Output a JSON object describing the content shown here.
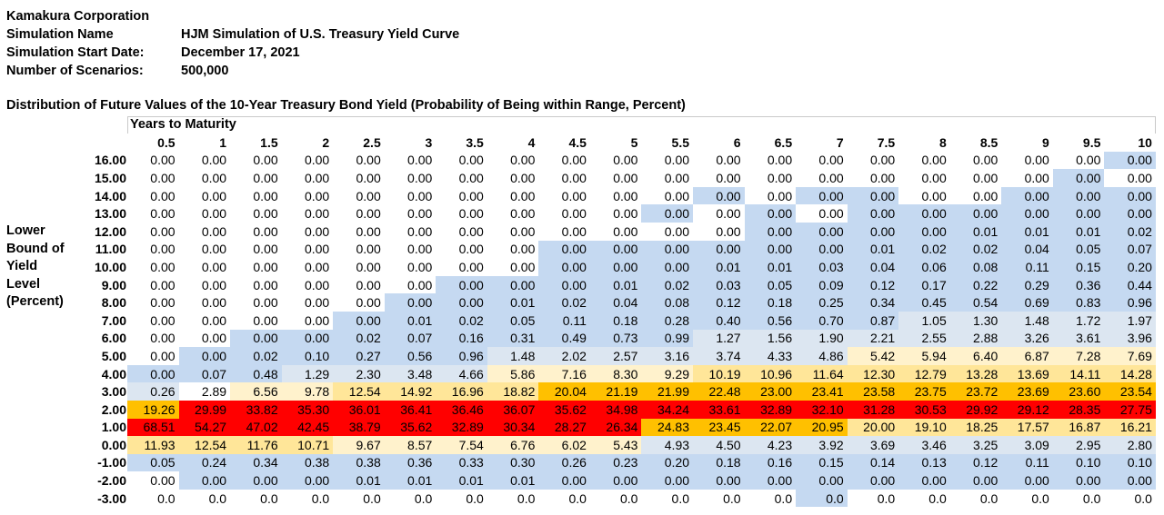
{
  "meta": {
    "company": "Kamakura Corporation",
    "simulation_name_label": "Simulation Name",
    "simulation_name": "HJM Simulation of U.S. Treasury Yield Curve",
    "start_date_label": "Simulation Start Date:",
    "start_date": "December 17, 2021",
    "scenarios_label": "Number of Scenarios:",
    "scenarios": "500,000"
  },
  "section_title": "Distribution of Future Values of the 10-Year Treasury Bond Yield (Probability of Being within Range, Percent)",
  "side_label": [
    "Lower",
    "Bound of",
    "Yield",
    "Level",
    "(Percent)"
  ],
  "years_to_maturity_label": "Years to Maturity",
  "colors": {
    "blue": "#c5d9f1",
    "light_blue": "#dce6f1",
    "white": "#ffffff",
    "light_yellow": "#fff2cc",
    "yellow": "#ffe699",
    "orange": "#ffc000",
    "red": "#ff0000"
  },
  "table": {
    "columns": [
      "0.5",
      "1",
      "1.5",
      "2",
      "2.5",
      "3",
      "3.5",
      "4",
      "4.5",
      "5",
      "5.5",
      "6",
      "6.5",
      "7",
      "7.5",
      "8",
      "8.5",
      "9",
      "9.5",
      "10"
    ],
    "rows": [
      {
        "label": "16.00",
        "values": [
          "0.00",
          "0.00",
          "0.00",
          "0.00",
          "0.00",
          "0.00",
          "0.00",
          "0.00",
          "0.00",
          "0.00",
          "0.00",
          "0.00",
          "0.00",
          "0.00",
          "0.00",
          "0.00",
          "0.00",
          "0.00",
          "0.00",
          "0.00"
        ],
        "shade": [
          "w",
          "w",
          "w",
          "w",
          "w",
          "w",
          "w",
          "w",
          "w",
          "w",
          "w",
          "w",
          "w",
          "w",
          "w",
          "w",
          "w",
          "w",
          "w",
          "b"
        ]
      },
      {
        "label": "15.00",
        "values": [
          "0.00",
          "0.00",
          "0.00",
          "0.00",
          "0.00",
          "0.00",
          "0.00",
          "0.00",
          "0.00",
          "0.00",
          "0.00",
          "0.00",
          "0.00",
          "0.00",
          "0.00",
          "0.00",
          "0.00",
          "0.00",
          "0.00",
          "0.00"
        ],
        "shade": [
          "w",
          "w",
          "w",
          "w",
          "w",
          "w",
          "w",
          "w",
          "w",
          "w",
          "w",
          "w",
          "w",
          "w",
          "w",
          "w",
          "w",
          "w",
          "b",
          "w"
        ]
      },
      {
        "label": "14.00",
        "values": [
          "0.00",
          "0.00",
          "0.00",
          "0.00",
          "0.00",
          "0.00",
          "0.00",
          "0.00",
          "0.00",
          "0.00",
          "0.00",
          "0.00",
          "0.00",
          "0.00",
          "0.00",
          "0.00",
          "0.00",
          "0.00",
          "0.00",
          "0.00"
        ],
        "shade": [
          "w",
          "w",
          "w",
          "w",
          "w",
          "w",
          "w",
          "w",
          "w",
          "w",
          "w",
          "b",
          "w",
          "b",
          "b",
          "w",
          "w",
          "b",
          "b",
          "b"
        ]
      },
      {
        "label": "13.00",
        "values": [
          "0.00",
          "0.00",
          "0.00",
          "0.00",
          "0.00",
          "0.00",
          "0.00",
          "0.00",
          "0.00",
          "0.00",
          "0.00",
          "0.00",
          "0.00",
          "0.00",
          "0.00",
          "0.00",
          "0.00",
          "0.00",
          "0.00",
          "0.00"
        ],
        "shade": [
          "w",
          "w",
          "w",
          "w",
          "w",
          "w",
          "w",
          "w",
          "w",
          "w",
          "b",
          "w",
          "b",
          "w",
          "b",
          "b",
          "b",
          "b",
          "b",
          "b"
        ]
      },
      {
        "label": "12.00",
        "values": [
          "0.00",
          "0.00",
          "0.00",
          "0.00",
          "0.00",
          "0.00",
          "0.00",
          "0.00",
          "0.00",
          "0.00",
          "0.00",
          "0.00",
          "0.00",
          "0.00",
          "0.00",
          "0.00",
          "0.01",
          "0.01",
          "0.01",
          "0.02"
        ],
        "shade": [
          "w",
          "w",
          "w",
          "w",
          "w",
          "w",
          "w",
          "w",
          "w",
          "w",
          "w",
          "w",
          "b",
          "b",
          "b",
          "b",
          "b",
          "b",
          "b",
          "b"
        ]
      },
      {
        "label": "11.00",
        "values": [
          "0.00",
          "0.00",
          "0.00",
          "0.00",
          "0.00",
          "0.00",
          "0.00",
          "0.00",
          "0.00",
          "0.00",
          "0.00",
          "0.00",
          "0.00",
          "0.00",
          "0.01",
          "0.02",
          "0.02",
          "0.04",
          "0.05",
          "0.07"
        ],
        "shade": [
          "w",
          "w",
          "w",
          "w",
          "w",
          "w",
          "w",
          "w",
          "b",
          "b",
          "b",
          "b",
          "b",
          "b",
          "b",
          "b",
          "b",
          "b",
          "b",
          "b"
        ]
      },
      {
        "label": "10.00",
        "values": [
          "0.00",
          "0.00",
          "0.00",
          "0.00",
          "0.00",
          "0.00",
          "0.00",
          "0.00",
          "0.00",
          "0.00",
          "0.00",
          "0.01",
          "0.01",
          "0.03",
          "0.04",
          "0.06",
          "0.08",
          "0.11",
          "0.15",
          "0.20"
        ],
        "shade": [
          "w",
          "w",
          "w",
          "w",
          "w",
          "w",
          "w",
          "w",
          "b",
          "b",
          "b",
          "b",
          "b",
          "b",
          "b",
          "b",
          "b",
          "b",
          "b",
          "b"
        ]
      },
      {
        "label": "9.00",
        "values": [
          "0.00",
          "0.00",
          "0.00",
          "0.00",
          "0.00",
          "0.00",
          "0.00",
          "0.00",
          "0.00",
          "0.01",
          "0.02",
          "0.03",
          "0.05",
          "0.09",
          "0.12",
          "0.17",
          "0.22",
          "0.29",
          "0.36",
          "0.44"
        ],
        "shade": [
          "w",
          "w",
          "w",
          "w",
          "w",
          "w",
          "b",
          "b",
          "b",
          "b",
          "b",
          "b",
          "b",
          "b",
          "b",
          "b",
          "b",
          "b",
          "b",
          "b"
        ]
      },
      {
        "label": "8.00",
        "values": [
          "0.00",
          "0.00",
          "0.00",
          "0.00",
          "0.00",
          "0.00",
          "0.00",
          "0.01",
          "0.02",
          "0.04",
          "0.08",
          "0.12",
          "0.18",
          "0.25",
          "0.34",
          "0.45",
          "0.54",
          "0.69",
          "0.83",
          "0.96"
        ],
        "shade": [
          "w",
          "w",
          "w",
          "w",
          "w",
          "b",
          "b",
          "b",
          "b",
          "b",
          "b",
          "b",
          "b",
          "b",
          "b",
          "b",
          "b",
          "b",
          "b",
          "b"
        ]
      },
      {
        "label": "7.00",
        "values": [
          "0.00",
          "0.00",
          "0.00",
          "0.00",
          "0.00",
          "0.01",
          "0.02",
          "0.05",
          "0.11",
          "0.18",
          "0.28",
          "0.40",
          "0.56",
          "0.70",
          "0.87",
          "1.05",
          "1.30",
          "1.48",
          "1.72",
          "1.97"
        ],
        "shade": [
          "w",
          "w",
          "w",
          "w",
          "b",
          "b",
          "b",
          "b",
          "b",
          "b",
          "b",
          "b",
          "b",
          "b",
          "b",
          "l",
          "l",
          "l",
          "l",
          "l"
        ]
      },
      {
        "label": "6.00",
        "values": [
          "0.00",
          "0.00",
          "0.00",
          "0.00",
          "0.02",
          "0.07",
          "0.16",
          "0.31",
          "0.49",
          "0.73",
          "0.99",
          "1.27",
          "1.56",
          "1.90",
          "2.21",
          "2.55",
          "2.88",
          "3.26",
          "3.61",
          "3.96"
        ],
        "shade": [
          "w",
          "w",
          "b",
          "b",
          "b",
          "b",
          "b",
          "b",
          "b",
          "b",
          "b",
          "l",
          "l",
          "l",
          "l",
          "l",
          "l",
          "l",
          "l",
          "l"
        ]
      },
      {
        "label": "5.00",
        "values": [
          "0.00",
          "0.00",
          "0.02",
          "0.10",
          "0.27",
          "0.56",
          "0.96",
          "1.48",
          "2.02",
          "2.57",
          "3.16",
          "3.74",
          "4.33",
          "4.86",
          "5.42",
          "5.94",
          "6.40",
          "6.87",
          "7.28",
          "7.69"
        ],
        "shade": [
          "w",
          "b",
          "b",
          "b",
          "b",
          "b",
          "b",
          "l",
          "l",
          "l",
          "l",
          "l",
          "l",
          "l",
          "p",
          "p",
          "p",
          "p",
          "p",
          "p"
        ]
      },
      {
        "label": "4.00",
        "values": [
          "0.00",
          "0.07",
          "0.48",
          "1.29",
          "2.30",
          "3.48",
          "4.66",
          "5.86",
          "7.16",
          "8.30",
          "9.29",
          "10.19",
          "10.96",
          "11.64",
          "12.30",
          "12.79",
          "13.28",
          "13.69",
          "14.11",
          "14.28"
        ],
        "shade": [
          "b",
          "b",
          "b",
          "l",
          "l",
          "l",
          "l",
          "p",
          "p",
          "p",
          "p",
          "y",
          "y",
          "y",
          "y",
          "y",
          "y",
          "y",
          "y",
          "y"
        ]
      },
      {
        "label": "3.00",
        "values": [
          "0.26",
          "2.89",
          "6.56",
          "9.78",
          "12.54",
          "14.92",
          "16.96",
          "18.82",
          "20.04",
          "21.19",
          "21.99",
          "22.48",
          "23.00",
          "23.41",
          "23.58",
          "23.75",
          "23.72",
          "23.69",
          "23.60",
          "23.54"
        ],
        "shade": [
          "l",
          "w",
          "p",
          "p",
          "y",
          "y",
          "y",
          "y",
          "o",
          "o",
          "o",
          "o",
          "o",
          "o",
          "o",
          "o",
          "o",
          "o",
          "o",
          "o"
        ]
      },
      {
        "label": "2.00",
        "values": [
          "19.26",
          "29.99",
          "33.82",
          "35.30",
          "36.01",
          "36.41",
          "36.46",
          "36.07",
          "35.62",
          "34.98",
          "34.24",
          "33.61",
          "32.89",
          "32.10",
          "31.28",
          "30.53",
          "29.92",
          "29.12",
          "28.35",
          "27.75"
        ],
        "shade": [
          "o",
          "r",
          "r",
          "r",
          "r",
          "r",
          "r",
          "r",
          "r",
          "r",
          "r",
          "r",
          "r",
          "r",
          "r",
          "r",
          "r",
          "r",
          "r",
          "r"
        ]
      },
      {
        "label": "1.00",
        "values": [
          "68.51",
          "54.27",
          "47.02",
          "42.45",
          "38.79",
          "35.62",
          "32.89",
          "30.34",
          "28.27",
          "26.34",
          "24.83",
          "23.45",
          "22.07",
          "20.95",
          "20.00",
          "19.10",
          "18.25",
          "17.57",
          "16.87",
          "16.21"
        ],
        "shade": [
          "r",
          "r",
          "r",
          "r",
          "r",
          "r",
          "r",
          "r",
          "r",
          "r",
          "o",
          "o",
          "o",
          "o",
          "y",
          "y",
          "y",
          "y",
          "y",
          "y"
        ]
      },
      {
        "label": "0.00",
        "values": [
          "11.93",
          "12.54",
          "11.76",
          "10.71",
          "9.67",
          "8.57",
          "7.54",
          "6.76",
          "6.02",
          "5.43",
          "4.93",
          "4.50",
          "4.23",
          "3.92",
          "3.69",
          "3.46",
          "3.25",
          "3.09",
          "2.95",
          "2.80"
        ],
        "shade": [
          "y",
          "y",
          "y",
          "y",
          "p",
          "p",
          "p",
          "p",
          "p",
          "p",
          "l",
          "l",
          "l",
          "l",
          "l",
          "l",
          "l",
          "l",
          "l",
          "l"
        ]
      },
      {
        "label": "-1.00",
        "values": [
          "0.05",
          "0.24",
          "0.34",
          "0.38",
          "0.38",
          "0.36",
          "0.33",
          "0.30",
          "0.26",
          "0.23",
          "0.20",
          "0.18",
          "0.16",
          "0.15",
          "0.14",
          "0.13",
          "0.12",
          "0.11",
          "0.10",
          "0.10"
        ],
        "shade": [
          "b",
          "b",
          "b",
          "b",
          "b",
          "b",
          "b",
          "b",
          "b",
          "b",
          "b",
          "b",
          "b",
          "b",
          "b",
          "b",
          "b",
          "b",
          "b",
          "b"
        ]
      },
      {
        "label": "-2.00",
        "values": [
          "0.00",
          "0.00",
          "0.00",
          "0.00",
          "0.01",
          "0.01",
          "0.01",
          "0.01",
          "0.00",
          "0.00",
          "0.00",
          "0.00",
          "0.00",
          "0.00",
          "0.00",
          "0.00",
          "0.00",
          "0.00",
          "0.00",
          "0.00"
        ],
        "shade": [
          "w",
          "b",
          "b",
          "b",
          "b",
          "b",
          "b",
          "b",
          "b",
          "b",
          "b",
          "b",
          "b",
          "b",
          "b",
          "b",
          "b",
          "b",
          "b",
          "b"
        ]
      },
      {
        "label": "-3.00",
        "values": [
          "0.0",
          "0.0",
          "0.0",
          "0.0",
          "0.0",
          "0.0",
          "0.0",
          "0.0",
          "0.0",
          "0.0",
          "0.0",
          "0.0",
          "0.0",
          "0.0",
          "0.0",
          "0.0",
          "0.0",
          "0.0",
          "0.0",
          "0.0"
        ],
        "shade": [
          "w",
          "w",
          "w",
          "w",
          "w",
          "w",
          "w",
          "w",
          "w",
          "w",
          "w",
          "w",
          "w",
          "b",
          "w",
          "w",
          "w",
          "w",
          "w",
          "w"
        ]
      }
    ]
  }
}
